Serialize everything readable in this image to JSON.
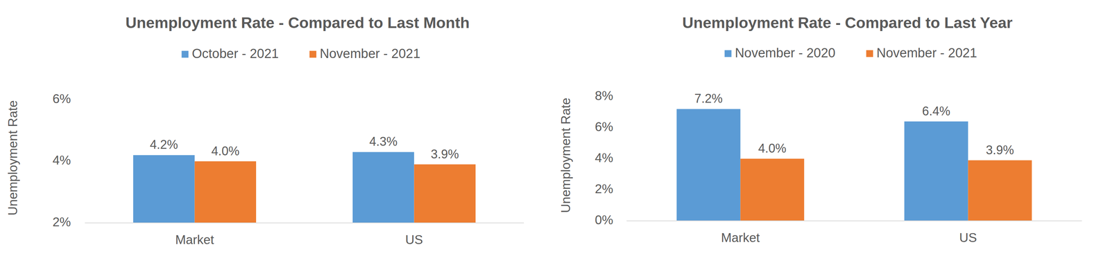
{
  "chart_data": [
    {
      "type": "bar",
      "title": "Unemployment Rate - Compared to Last Month",
      "ylabel": "Unemployment Rate",
      "categories": [
        "Market",
        "US"
      ],
      "series": [
        {
          "name": "October - 2021",
          "color": "#5B9BD5",
          "values": [
            4.2,
            4.3
          ],
          "value_labels": [
            "4.2%",
            "4.3%"
          ]
        },
        {
          "name": "November - 2021",
          "color": "#ED7D31",
          "values": [
            4.0,
            3.9
          ],
          "value_labels": [
            "4.0%",
            "3.9%"
          ]
        }
      ],
      "ylim": [
        2,
        6
      ],
      "yticks": [
        {
          "value": 2,
          "label": "2%"
        },
        {
          "value": 4,
          "label": "4%"
        },
        {
          "value": 6,
          "label": "6%"
        }
      ],
      "grid": false,
      "legend": "top",
      "data_labels": true
    },
    {
      "type": "bar",
      "title": "Unemployment Rate - Compared to Last Year",
      "ylabel": "Unemployment Rate",
      "categories": [
        "Market",
        "US"
      ],
      "series": [
        {
          "name": "November - 2020",
          "color": "#5B9BD5",
          "values": [
            7.2,
            6.4
          ],
          "value_labels": [
            "7.2%",
            "6.4%"
          ]
        },
        {
          "name": "November - 2021",
          "color": "#ED7D31",
          "values": [
            4.0,
            3.9
          ],
          "value_labels": [
            "4.0%",
            "3.9%"
          ]
        }
      ],
      "ylim": [
        0,
        8
      ],
      "yticks": [
        {
          "value": 0,
          "label": "0%"
        },
        {
          "value": 2,
          "label": "2%"
        },
        {
          "value": 4,
          "label": "4%"
        },
        {
          "value": 6,
          "label": "6%"
        },
        {
          "value": 8,
          "label": "8%"
        }
      ],
      "grid": false,
      "legend": "top",
      "data_labels": true
    }
  ]
}
